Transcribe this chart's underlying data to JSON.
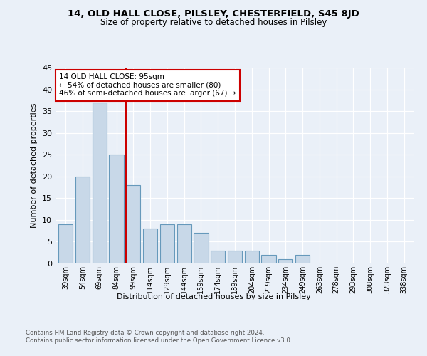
{
  "title1": "14, OLD HALL CLOSE, PILSLEY, CHESTERFIELD, S45 8JD",
  "title2": "Size of property relative to detached houses in Pilsley",
  "xlabel": "Distribution of detached houses by size in Pilsley",
  "ylabel": "Number of detached properties",
  "categories": [
    "39sqm",
    "54sqm",
    "69sqm",
    "84sqm",
    "99sqm",
    "114sqm",
    "129sqm",
    "144sqm",
    "159sqm",
    "174sqm",
    "189sqm",
    "204sqm",
    "219sqm",
    "234sqm",
    "249sqm",
    "263sqm",
    "278sqm",
    "293sqm",
    "308sqm",
    "323sqm",
    "338sqm"
  ],
  "values": [
    9,
    20,
    37,
    25,
    18,
    8,
    9,
    9,
    7,
    3,
    3,
    3,
    2,
    1,
    2,
    0,
    0,
    0,
    0,
    0,
    0
  ],
  "bar_color": "#c8d8e8",
  "bar_edge_color": "#6699bb",
  "annotation_title": "14 OLD HALL CLOSE: 95sqm",
  "annotation_line1": "← 54% of detached houses are smaller (80)",
  "annotation_line2": "46% of semi-detached houses are larger (67) →",
  "annotation_box_color": "#ffffff",
  "annotation_box_edge": "#cc0000",
  "vline_color": "#cc0000",
  "vline_x": 4.0,
  "ylim": [
    0,
    45
  ],
  "yticks": [
    0,
    5,
    10,
    15,
    20,
    25,
    30,
    35,
    40,
    45
  ],
  "footer1": "Contains HM Land Registry data © Crown copyright and database right 2024.",
  "footer2": "Contains public sector information licensed under the Open Government Licence v3.0.",
  "bg_color": "#eaf0f8",
  "plot_bg_color": "#eaf0f8"
}
